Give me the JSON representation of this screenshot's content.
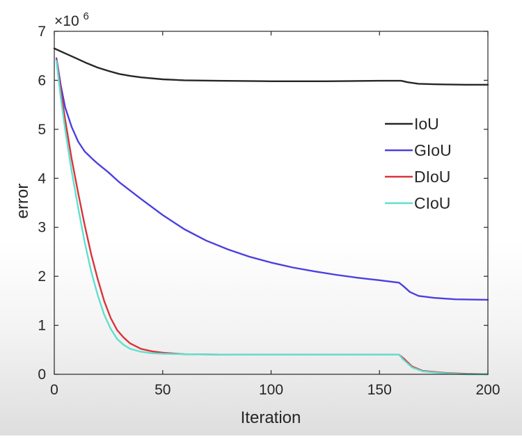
{
  "chart_data": {
    "type": "line",
    "title": "",
    "xlabel": "Iteration",
    "ylabel": "error",
    "y_exponent_label": "×10",
    "y_exponent_power": "6",
    "y_scale_factor": 1000000,
    "xlim": [
      0,
      200
    ],
    "ylim": [
      0,
      7
    ],
    "x_ticks": [
      0,
      50,
      100,
      150,
      200
    ],
    "y_ticks": [
      0,
      1,
      2,
      3,
      4,
      5,
      6,
      7
    ],
    "x_tick_labels": [
      "0",
      "50",
      "100",
      "150",
      "200"
    ],
    "y_tick_labels": [
      "0",
      "1",
      "2",
      "3",
      "4",
      "5",
      "6",
      "7"
    ],
    "grid": false,
    "legend_position": "right",
    "series": [
      {
        "name": "IoU",
        "color": "#262626",
        "points": [
          [
            0,
            6.65
          ],
          [
            5,
            6.55
          ],
          [
            10,
            6.45
          ],
          [
            15,
            6.35
          ],
          [
            20,
            6.26
          ],
          [
            25,
            6.19
          ],
          [
            30,
            6.13
          ],
          [
            35,
            6.09
          ],
          [
            40,
            6.06
          ],
          [
            50,
            6.02
          ],
          [
            60,
            6.0
          ],
          [
            75,
            5.99
          ],
          [
            100,
            5.98
          ],
          [
            125,
            5.98
          ],
          [
            150,
            5.99
          ],
          [
            160,
            5.99
          ],
          [
            163,
            5.96
          ],
          [
            168,
            5.93
          ],
          [
            175,
            5.92
          ],
          [
            190,
            5.91
          ],
          [
            200,
            5.91
          ]
        ]
      },
      {
        "name": "GIoU",
        "color": "#4b3fe0",
        "points": [
          [
            1,
            6.45
          ],
          [
            3,
            5.9
          ],
          [
            5,
            5.45
          ],
          [
            8,
            5.05
          ],
          [
            11,
            4.75
          ],
          [
            14,
            4.55
          ],
          [
            17,
            4.42
          ],
          [
            20,
            4.3
          ],
          [
            25,
            4.12
          ],
          [
            30,
            3.92
          ],
          [
            40,
            3.58
          ],
          [
            50,
            3.25
          ],
          [
            60,
            2.96
          ],
          [
            70,
            2.73
          ],
          [
            80,
            2.55
          ],
          [
            90,
            2.4
          ],
          [
            100,
            2.28
          ],
          [
            110,
            2.18
          ],
          [
            120,
            2.1
          ],
          [
            130,
            2.03
          ],
          [
            140,
            1.97
          ],
          [
            150,
            1.92
          ],
          [
            159,
            1.87
          ],
          [
            161,
            1.8
          ],
          [
            164,
            1.68
          ],
          [
            168,
            1.6
          ],
          [
            175,
            1.56
          ],
          [
            185,
            1.53
          ],
          [
            200,
            1.52
          ]
        ]
      },
      {
        "name": "DIoU",
        "color": "#d9343a",
        "points": [
          [
            1,
            6.42
          ],
          [
            3,
            5.8
          ],
          [
            5,
            5.2
          ],
          [
            8,
            4.4
          ],
          [
            11,
            3.7
          ],
          [
            14,
            3.05
          ],
          [
            17,
            2.45
          ],
          [
            20,
            1.95
          ],
          [
            23,
            1.5
          ],
          [
            26,
            1.15
          ],
          [
            29,
            0.9
          ],
          [
            32,
            0.75
          ],
          [
            35,
            0.63
          ],
          [
            40,
            0.52
          ],
          [
            45,
            0.47
          ],
          [
            50,
            0.44
          ],
          [
            60,
            0.41
          ],
          [
            80,
            0.4
          ],
          [
            100,
            0.4
          ],
          [
            130,
            0.4
          ],
          [
            159,
            0.4
          ],
          [
            161,
            0.33
          ],
          [
            165,
            0.16
          ],
          [
            170,
            0.07
          ],
          [
            180,
            0.03
          ],
          [
            190,
            0.01
          ],
          [
            200,
            0.0
          ]
        ]
      },
      {
        "name": "CIoU",
        "color": "#5fe0cf",
        "points": [
          [
            1,
            6.4
          ],
          [
            3,
            5.65
          ],
          [
            5,
            5.0
          ],
          [
            8,
            4.15
          ],
          [
            11,
            3.4
          ],
          [
            14,
            2.7
          ],
          [
            17,
            2.1
          ],
          [
            20,
            1.62
          ],
          [
            23,
            1.22
          ],
          [
            26,
            0.93
          ],
          [
            29,
            0.72
          ],
          [
            32,
            0.6
          ],
          [
            35,
            0.52
          ],
          [
            40,
            0.46
          ],
          [
            45,
            0.43
          ],
          [
            50,
            0.42
          ],
          [
            60,
            0.41
          ],
          [
            80,
            0.4
          ],
          [
            100,
            0.4
          ],
          [
            130,
            0.4
          ],
          [
            159,
            0.4
          ],
          [
            161,
            0.3
          ],
          [
            165,
            0.14
          ],
          [
            170,
            0.06
          ],
          [
            180,
            0.02
          ],
          [
            190,
            0.0
          ],
          [
            200,
            0.0
          ]
        ]
      }
    ]
  }
}
